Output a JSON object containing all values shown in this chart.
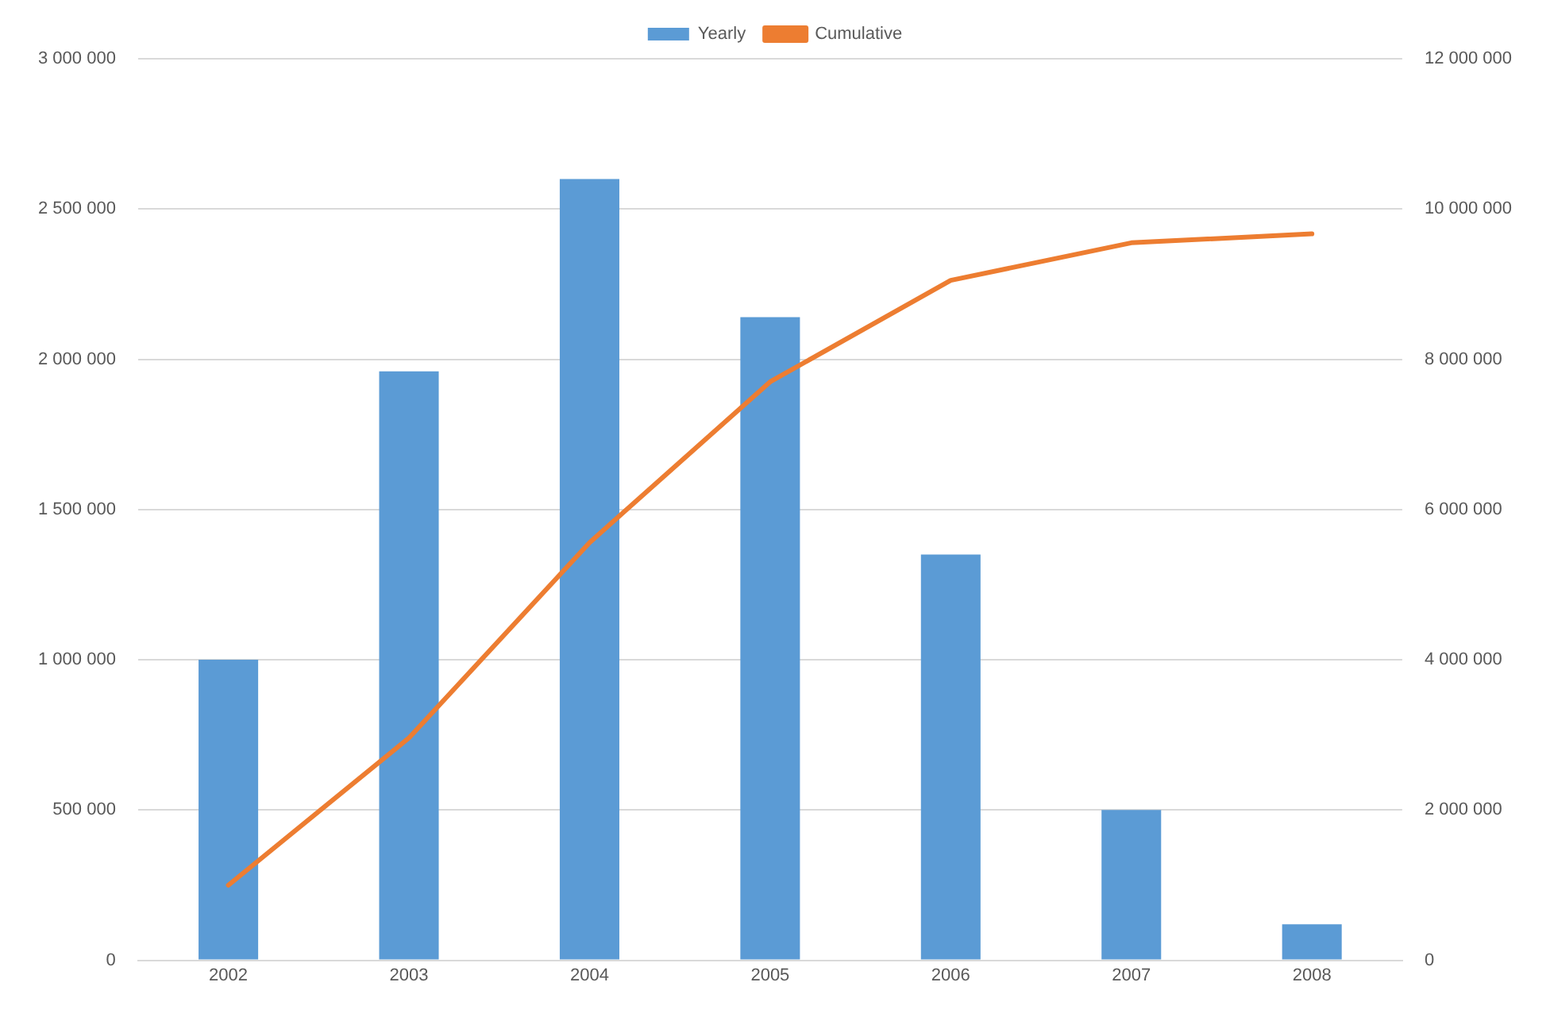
{
  "chart_data": {
    "type": "bar",
    "categories": [
      "2002",
      "2003",
      "2004",
      "2005",
      "2006",
      "2007",
      "2008"
    ],
    "series": [
      {
        "name": "Yearly",
        "color": "#5b9bd5",
        "values": [
          1000000,
          1960000,
          2600000,
          2140000,
          1350000,
          500000,
          120000
        ]
      },
      {
        "name": "Cumulative",
        "type": "line",
        "axis": "y2",
        "color": "#ed7d31",
        "values": [
          1000000,
          2960000,
          5560000,
          7700000,
          9050000,
          9550000,
          9670000
        ]
      }
    ],
    "ylim": [
      0,
      3000000
    ],
    "yticks": [
      {
        "value": 0,
        "label": "0"
      },
      {
        "value": 500000,
        "label": "500 000"
      },
      {
        "value": 1000000,
        "label": "1 000 000"
      },
      {
        "value": 1500000,
        "label": "1 500 000"
      },
      {
        "value": 2000000,
        "label": "2 000 000"
      },
      {
        "value": 2500000,
        "label": "2 500 000"
      },
      {
        "value": 3000000,
        "label": "3 000 000"
      }
    ],
    "y2lim": [
      0,
      12000000
    ],
    "y2ticks": [
      {
        "value": 0,
        "label": "0"
      },
      {
        "value": 2000000,
        "label": "2 000 000"
      },
      {
        "value": 4000000,
        "label": "4 000 000"
      },
      {
        "value": 6000000,
        "label": "6 000 000"
      },
      {
        "value": 8000000,
        "label": "8 000 000"
      },
      {
        "value": 10000000,
        "label": "10 000 000"
      },
      {
        "value": 12000000,
        "label": "12 000 000"
      }
    ],
    "grid": "y",
    "legend": "top",
    "marker": "none",
    "line_style": "solid"
  }
}
